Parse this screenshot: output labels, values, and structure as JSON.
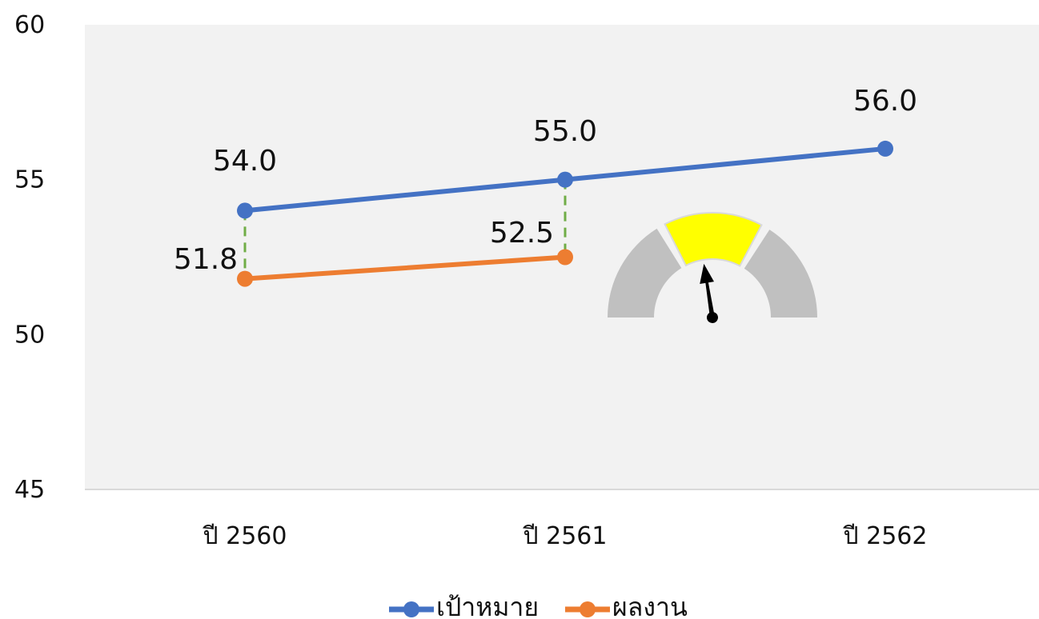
{
  "chart_data": {
    "type": "line",
    "categories": [
      "ปี 2560",
      "ปี 2561",
      "ปี 2562"
    ],
    "series": [
      {
        "name": "เป้าหมาย",
        "color": "#4472c4",
        "values": [
          54.0,
          55.0,
          56.0
        ],
        "labels": [
          "54.0",
          "55.0",
          "56.0"
        ]
      },
      {
        "name": "ผลงาน",
        "color": "#ed7d31",
        "values": [
          51.8,
          52.5,
          null
        ],
        "labels": [
          "51.8",
          "52.5",
          ""
        ]
      }
    ],
    "ylim": [
      45,
      60
    ],
    "yticks": [
      "45",
      "50",
      "55",
      "60"
    ],
    "gap_connector_color": "#70ad47",
    "grid": false,
    "legend": "bottom",
    "plot_background": "#f2f2f2"
  },
  "gauge": {
    "icon": "speedometer-gauge-icon",
    "active_color": "#ffff00",
    "inactive_color": "#c0c0c0",
    "level": 0.45
  }
}
